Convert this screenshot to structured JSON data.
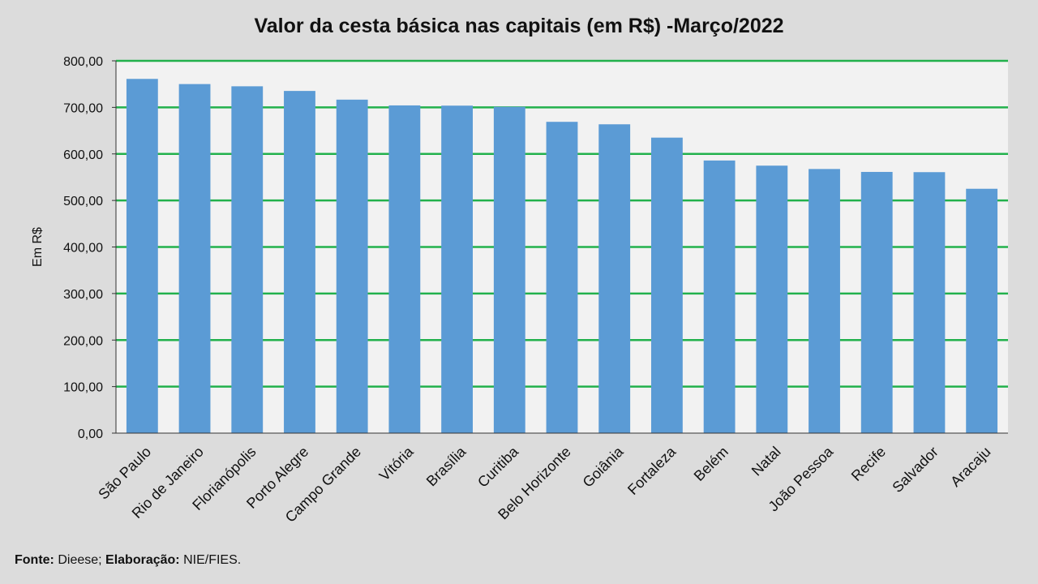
{
  "chart_data": {
    "type": "bar",
    "title": "Valor da cesta básica nas capitais (em R$) -Março/2022",
    "xlabel": "",
    "ylabel": "Em R$",
    "ylim": [
      0,
      800
    ],
    "yticks": [
      "0,00",
      "100,00",
      "200,00",
      "300,00",
      "400,00",
      "500,00",
      "600,00",
      "700,00",
      "800,00"
    ],
    "grid": true,
    "categories": [
      "São Paulo",
      "Rio de Janeiro",
      "Florianópolis",
      "Porto Alegre",
      "Campo Grande",
      "Vitória",
      "Brasília",
      "Curitiba",
      "Belo Horizonte",
      "Goiânia",
      "Fortaleza",
      "Belém",
      "Natal",
      "João Pessoa",
      "Recife",
      "Salvador",
      "Aracaju"
    ],
    "values": [
      761.19,
      750.07,
      745.31,
      735.3,
      716.61,
      704.23,
      703.7,
      701.14,
      668.93,
      663.62,
      634.97,
      585.85,
      574.79,
      567.57,
      561.3,
      560.8,
      525.08
    ],
    "colors": {
      "bar": "#5b9bd5",
      "grid": "#22b14c",
      "plot_bg": "#f2f2f2"
    }
  },
  "source": {
    "fonte_label": "Fonte:",
    "fonte_value": "Dieese;",
    "elab_label": "Elaboração:",
    "elab_value": "NIE/FIES."
  }
}
